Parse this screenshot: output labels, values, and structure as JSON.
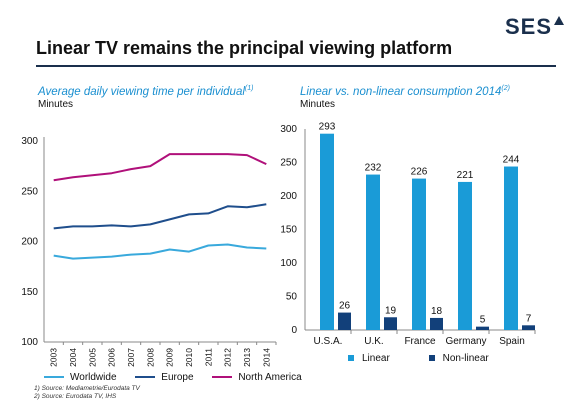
{
  "logo": "SES",
  "title": "Linear TV remains the principal viewing platform",
  "chart_data": [
    {
      "type": "line",
      "title": "Average daily viewing time per individual",
      "title_note": "(1)",
      "ylabel": "Minutes",
      "ylim": [
        100,
        300
      ],
      "yticks": [
        100,
        150,
        200,
        250,
        300
      ],
      "x": [
        "2003",
        "2004",
        "2005",
        "2006",
        "2007",
        "2008",
        "2009",
        "2010",
        "2011",
        "2012",
        "2013",
        "2014"
      ],
      "series": [
        {
          "name": "Worldwide",
          "color": "#39a9dc",
          "values": [
            186,
            183,
            184,
            185,
            187,
            188,
            192,
            190,
            196,
            197,
            194,
            193
          ]
        },
        {
          "name": "Europe",
          "color": "#1f4e8c",
          "values": [
            213,
            215,
            215,
            216,
            215,
            217,
            222,
            227,
            228,
            235,
            234,
            237
          ]
        },
        {
          "name": "North America",
          "color": "#b0107a",
          "values": [
            261,
            264,
            266,
            268,
            272,
            275,
            287,
            287,
            287,
            287,
            286,
            277
          ]
        }
      ],
      "legend": "bottom"
    },
    {
      "type": "bar",
      "title": "Linear vs. non-linear consumption 2014",
      "title_note": "(2)",
      "ylabel": "Minutes",
      "ylim": [
        0,
        300
      ],
      "yticks": [
        0,
        50,
        100,
        150,
        200,
        250,
        300
      ],
      "categories": [
        "U.S.A.",
        "U.K.",
        "France",
        "Germany",
        "Spain"
      ],
      "series": [
        {
          "name": "Linear",
          "color": "#1a9bd7",
          "values": [
            293,
            232,
            226,
            221,
            244
          ]
        },
        {
          "name": "Non-linear",
          "color": "#12407a",
          "values": [
            26,
            19,
            18,
            5,
            7
          ]
        }
      ],
      "legend": "bottom"
    }
  ],
  "footnotes": [
    "1) Source: Mediametrie/Eurodata TV",
    "2) Source: Eurodata TV, IHS"
  ]
}
